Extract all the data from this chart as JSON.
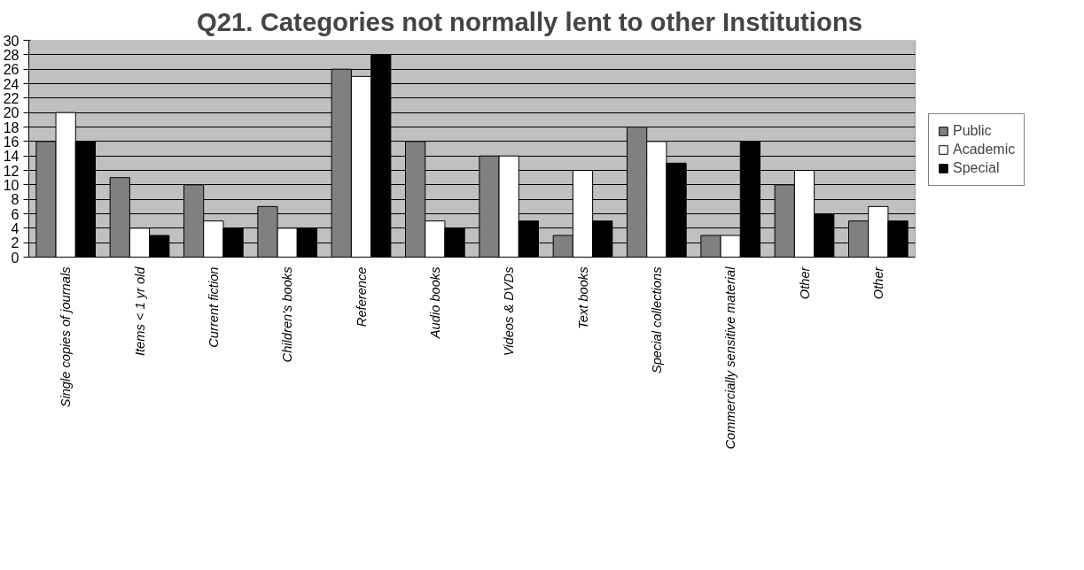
{
  "chart_data": {
    "type": "bar",
    "title": "Q21. Categories not normally lent to other Institutions",
    "categories": [
      "Single copies of journals",
      "Items < 1 yr old",
      "Current fiction",
      "Children's books",
      "Reference",
      "Audio books",
      "Videos & DVDs",
      "Text books",
      "Special collections",
      "Commercially sensitive material",
      "Other",
      "Other"
    ],
    "series": [
      {
        "name": "Public",
        "color": "#808080",
        "values": [
          16,
          11,
          10,
          7,
          26,
          16,
          14,
          3,
          18,
          3,
          10,
          5
        ]
      },
      {
        "name": "Academic",
        "color": "#ffffff",
        "values": [
          20,
          4,
          5,
          4,
          25,
          5,
          14,
          12,
          16,
          3,
          12,
          7
        ]
      },
      {
        "name": "Special",
        "color": "#000000",
        "values": [
          16,
          3,
          4,
          4,
          28,
          4,
          5,
          5,
          13,
          16,
          6,
          5
        ]
      }
    ],
    "ylim": [
      0,
      30
    ],
    "yticks": [
      0,
      2,
      4,
      6,
      8,
      10,
      12,
      14,
      16,
      18,
      20,
      22,
      24,
      26,
      28,
      30
    ],
    "grid": "y",
    "legend": "right"
  }
}
